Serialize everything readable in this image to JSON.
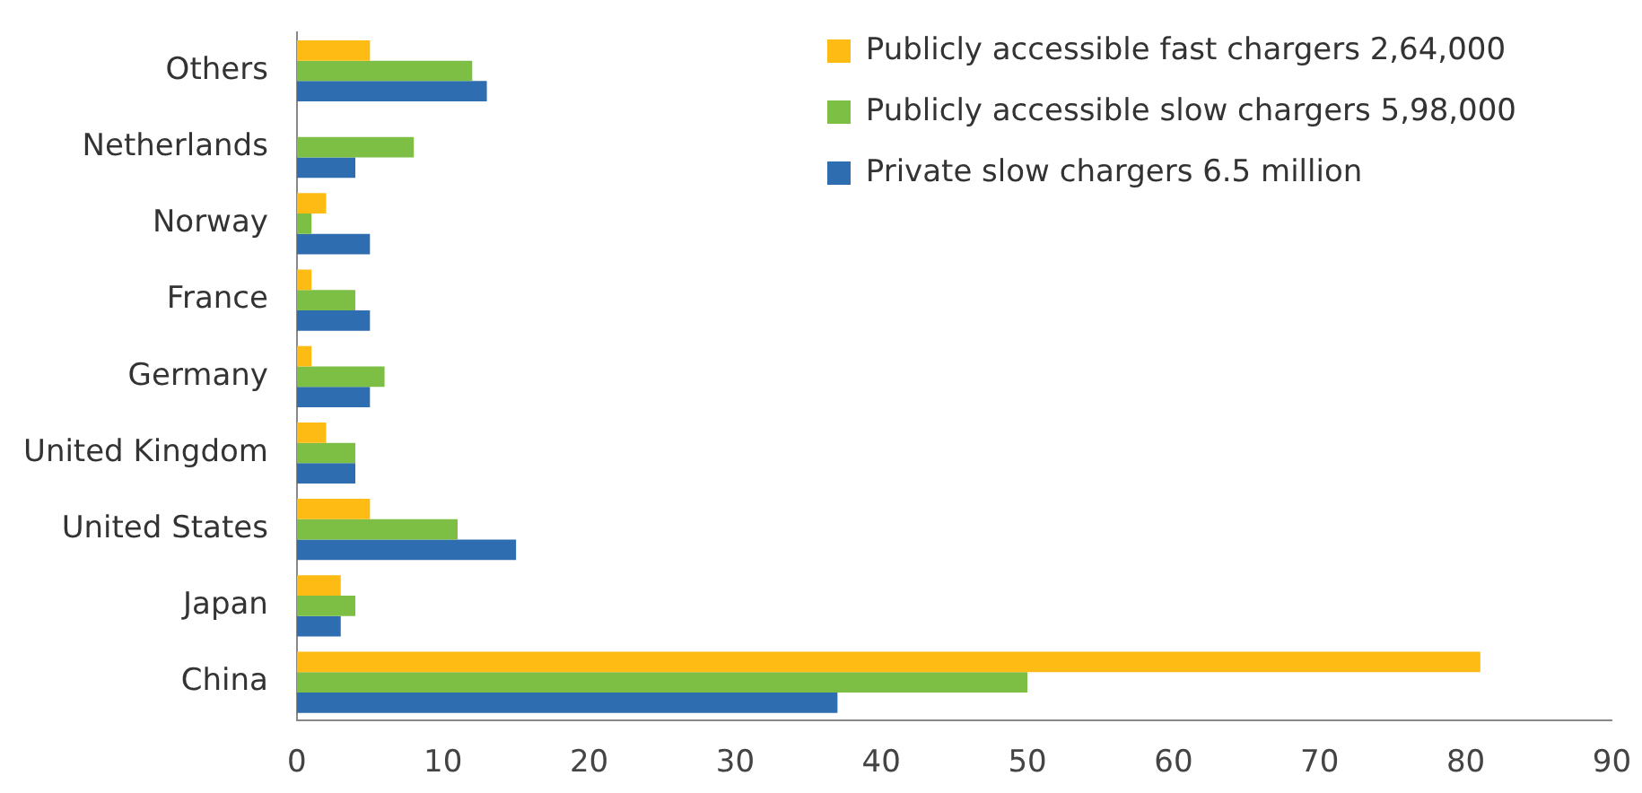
{
  "chart_data": {
    "type": "bar",
    "orientation": "horizontal",
    "categories": [
      "Others",
      "Netherlands",
      "Norway",
      "France",
      "Germany",
      "United Kingdom",
      "United States",
      "Japan",
      "China"
    ],
    "series": [
      {
        "name": "Publicly accessible fast chargers 2,64,000",
        "color": "#fdbb13",
        "values": [
          5,
          0,
          2,
          1,
          1,
          2,
          5,
          3,
          81
        ]
      },
      {
        "name": "Publicly accessible slow chargers 5,98,000",
        "color": "#7dbf45",
        "values": [
          12,
          8,
          1,
          4,
          6,
          4,
          11,
          4,
          50
        ]
      },
      {
        "name": "Private slow chargers 6.5 million",
        "color": "#2e6db0",
        "values": [
          13,
          4,
          5,
          5,
          5,
          4,
          15,
          3,
          37
        ]
      }
    ],
    "xlim": [
      0,
      90
    ],
    "xticks": [
      0,
      10,
      20,
      30,
      40,
      50,
      60,
      70,
      80,
      90
    ],
    "grid": false,
    "legend": "top right"
  }
}
